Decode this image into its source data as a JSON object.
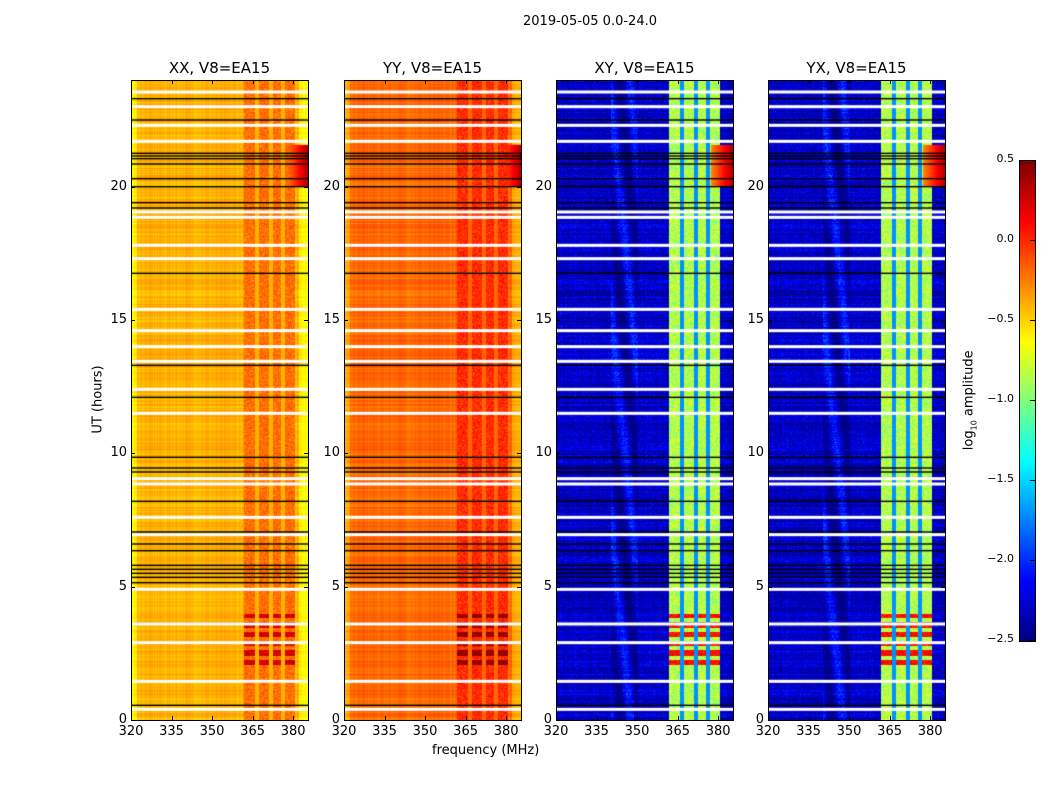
{
  "chart_data": {
    "type": "heatmap",
    "title": "2019-05-05 0.0-24.0",
    "xlabel": "frequency (MHz)",
    "ylabel": "UT (hours)",
    "xlim": [
      320,
      385.5
    ],
    "ylim": [
      0,
      24
    ],
    "xticks": [
      320,
      335,
      350,
      365,
      380
    ],
    "yticks": [
      0,
      5,
      10,
      15,
      20
    ],
    "panels": [
      {
        "title": "XX, V8=EA15",
        "baseline": -0.4,
        "rfi_level": -0.2,
        "burst_level": 0.25
      },
      {
        "title": "YY, V8=EA15",
        "baseline": -0.18,
        "rfi_level": 0.0,
        "burst_level": 0.45
      },
      {
        "title": "XY, V8=EA15",
        "baseline": -2.3,
        "rfi_level": -0.85,
        "burst_level": 0.1
      },
      {
        "title": "YX, V8=EA15",
        "baseline": -2.3,
        "rfi_level": -0.85,
        "burst_level": 0.1
      }
    ],
    "rfi_band_mhz": [
      361.5,
      380.5
    ],
    "rfi_gaps_mhz": [
      366.5,
      371.5,
      376.0
    ],
    "burst_hours": [
      2.0,
      4.0
    ],
    "flagged_white_hours": [
      0.4,
      1.45,
      2.9,
      3.6,
      4.9,
      6.95,
      7.6,
      8.85,
      9.05,
      11.5,
      12.4,
      13.45,
      14.0,
      14.6,
      15.4,
      17.3,
      17.8,
      18.85,
      19.05,
      21.7,
      22.3,
      23.0,
      23.55
    ],
    "flagged_black_hours": [
      0.55,
      5.15,
      5.35,
      5.5,
      5.65,
      5.8,
      6.35,
      6.6,
      7.05,
      8.2,
      9.3,
      9.45,
      9.85,
      12.1,
      13.3,
      16.75,
      19.2,
      19.4,
      20.0,
      20.3,
      20.85,
      21.05,
      21.15,
      21.25,
      22.5,
      23.3
    ],
    "colorbar": {
      "label": "log10 amplitude",
      "label_main": "log",
      "label_sub": "10",
      "label_rest": " amplitude",
      "range": [
        -2.5,
        0.5
      ],
      "ticks": [
        "0.5",
        "0.0",
        "−0.5",
        "−1.0",
        "−1.5",
        "−2.0",
        "−2.5"
      ],
      "tick_values": [
        0.5,
        0.0,
        -0.5,
        -1.0,
        -1.5,
        -2.0,
        -2.5
      ],
      "colormap": "jet"
    }
  }
}
